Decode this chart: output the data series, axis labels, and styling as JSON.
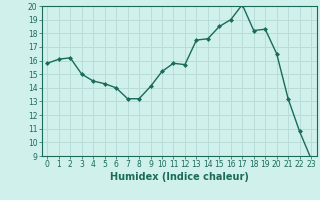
{
  "x": [
    0,
    1,
    2,
    3,
    4,
    5,
    6,
    7,
    8,
    9,
    10,
    11,
    12,
    13,
    14,
    15,
    16,
    17,
    18,
    19,
    20,
    21,
    22,
    23
  ],
  "y": [
    15.8,
    16.1,
    16.2,
    15.0,
    14.5,
    14.3,
    14.0,
    13.2,
    13.2,
    14.1,
    15.2,
    15.8,
    15.7,
    17.5,
    17.6,
    18.5,
    19.0,
    20.1,
    18.2,
    18.3,
    16.5,
    13.2,
    10.8,
    8.8
  ],
  "xlabel": "Humidex (Indice chaleur)",
  "ylim": [
    9,
    20
  ],
  "xlim": [
    -0.5,
    23.5
  ],
  "yticks": [
    9,
    10,
    11,
    12,
    13,
    14,
    15,
    16,
    17,
    18,
    19,
    20
  ],
  "xticks": [
    0,
    1,
    2,
    3,
    4,
    5,
    6,
    7,
    8,
    9,
    10,
    11,
    12,
    13,
    14,
    15,
    16,
    17,
    18,
    19,
    20,
    21,
    22,
    23
  ],
  "line_color": "#1a6b5a",
  "marker_color": "#1a6b5a",
  "bg_color": "#cff0eb",
  "grid_color": "#b8ddd8",
  "xlabel_color": "#1a6b5a",
  "tick_color": "#1a6b5a",
  "xlabel_fontsize": 7,
  "tick_fontsize": 5.5
}
